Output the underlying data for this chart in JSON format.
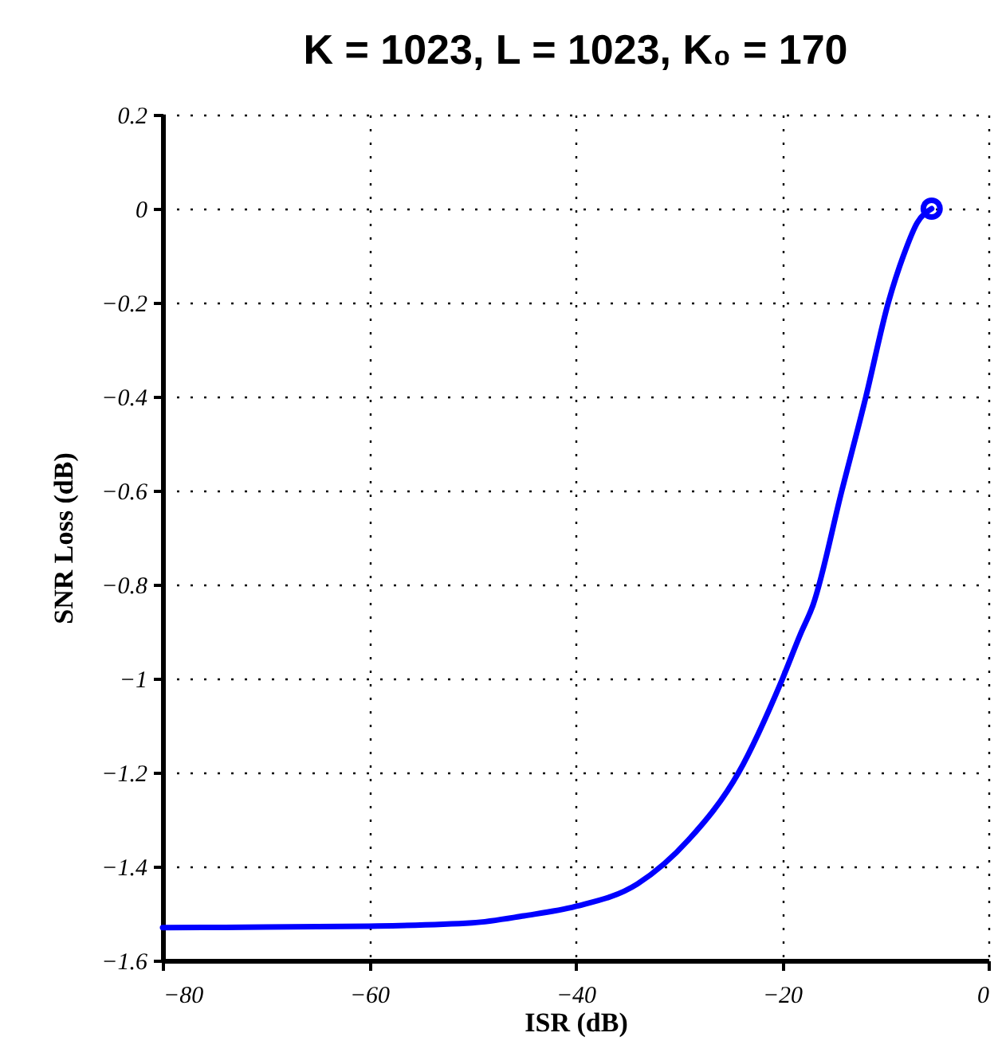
{
  "chart_data": {
    "type": "line",
    "title": "K = 1023, L = 1023, K₀ = 170",
    "xlabel": "ISR (dB)",
    "ylabel": "SNR Loss (dB)",
    "xlim": [
      -80,
      0
    ],
    "xticks": [
      {
        "value": -80,
        "label": "−80"
      },
      {
        "value": -60,
        "label": "−60"
      },
      {
        "value": -40,
        "label": "−40"
      },
      {
        "value": -20,
        "label": "−20"
      },
      0
    ],
    "ylim": [
      -1.6,
      0.2
    ],
    "yticks": [
      {
        "value": -1.6,
        "label": "−1.6"
      },
      {
        "value": -1.4,
        "label": "−1.4"
      },
      {
        "value": -1.2,
        "label": "−1.2"
      },
      {
        "value": -1,
        "label": "−1"
      },
      {
        "value": -0.8,
        "label": "−0.8"
      },
      {
        "value": -0.6,
        "label": "−0.6"
      },
      {
        "value": -0.4,
        "label": "−0.4"
      },
      {
        "value": -0.2,
        "label": "−0.2"
      },
      0,
      0.2
    ],
    "grid": true,
    "line_style": "solid",
    "series": [
      {
        "color": "#0000ff",
        "x": [
          -80,
          -70,
          -60,
          -50,
          -45,
          -40,
          -34,
          -29,
          -24.2,
          -20,
          -18.2,
          -17,
          -14.2,
          -11.9,
          -9.7,
          -8.2,
          -6.9,
          -5.5
        ],
        "values": [
          -1.53,
          -1.529,
          -1.527,
          -1.52,
          -1.505,
          -1.485,
          -1.437,
          -1.342,
          -1.2,
          -1.003,
          -0.905,
          -0.844,
          -0.6,
          -0.403,
          -0.2,
          -0.098,
          -0.03,
          0
        ]
      },
      {
        "type": "scatter",
        "marker": "circle",
        "color": "#0000ff",
        "x": [
          -5.5
        ],
        "values": [
          0
        ]
      }
    ]
  }
}
